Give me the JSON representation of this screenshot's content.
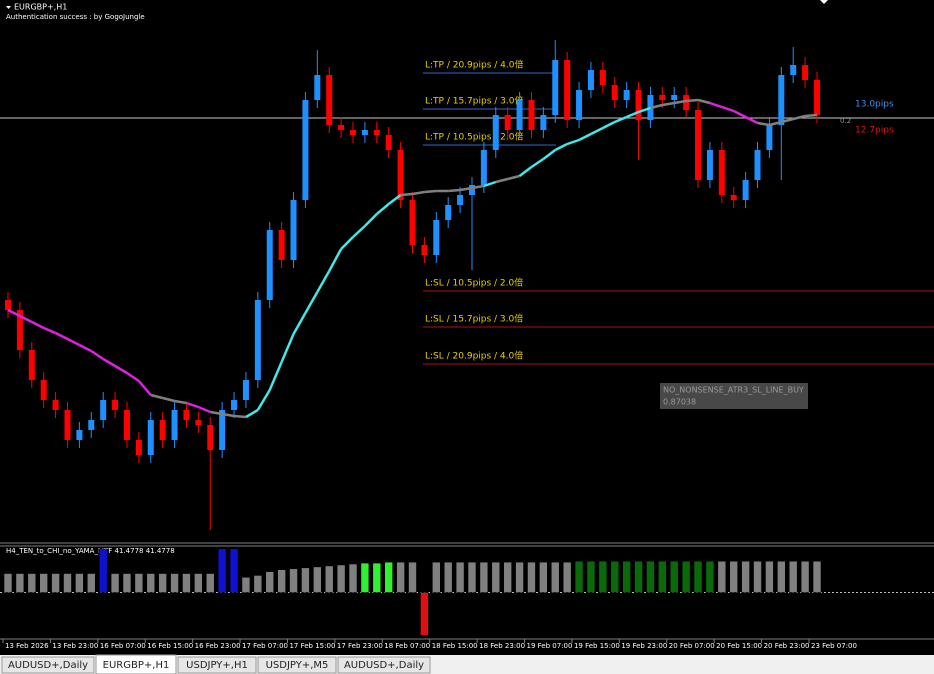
{
  "header": {
    "symbol": "EURGBP+,H1",
    "status": "Authentication success : by GogoJungle"
  },
  "price_pane": {
    "ylim": [
      0,
      540
    ],
    "up_color": "#1e90ff",
    "down_color": "#ff0000",
    "candles": {
      "open": [
        240,
        230,
        190,
        160,
        140,
        130,
        100,
        110,
        120,
        140,
        130,
        100,
        85,
        120,
        100,
        130,
        120,
        115,
        90,
        130,
        140,
        160,
        240,
        310,
        280,
        340,
        440,
        465,
        415,
        410,
        405,
        410,
        405,
        390,
        340,
        295,
        285,
        320,
        335,
        345,
        355,
        390,
        425,
        410,
        440,
        410,
        425,
        480,
        420,
        450,
        470,
        455,
        440,
        450,
        420,
        445,
        440,
        445,
        430,
        360,
        390,
        345,
        340,
        360,
        390,
        415,
        465,
        475,
        460
      ],
      "high": [
        248,
        238,
        198,
        168,
        148,
        138,
        118,
        128,
        148,
        148,
        138,
        108,
        128,
        128,
        138,
        138,
        128,
        123,
        138,
        148,
        168,
        248,
        318,
        318,
        348,
        448,
        490,
        473,
        423,
        418,
        418,
        418,
        413,
        398,
        348,
        303,
        328,
        343,
        353,
        363,
        398,
        433,
        433,
        448,
        448,
        433,
        500,
        488,
        458,
        478,
        478,
        463,
        458,
        458,
        453,
        453,
        453,
        453,
        438,
        398,
        398,
        353,
        368,
        398,
        423,
        473,
        493,
        483,
        468
      ],
      "low": [
        222,
        182,
        152,
        132,
        122,
        92,
        92,
        102,
        112,
        122,
        92,
        77,
        77,
        92,
        92,
        112,
        107,
        10,
        82,
        122,
        132,
        152,
        232,
        272,
        272,
        332,
        432,
        407,
        402,
        397,
        397,
        397,
        382,
        332,
        287,
        277,
        277,
        312,
        327,
        270,
        347,
        382,
        402,
        402,
        402,
        402,
        417,
        412,
        412,
        442,
        447,
        432,
        432,
        380,
        412,
        432,
        432,
        422,
        352,
        352,
        337,
        332,
        332,
        352,
        382,
        360,
        457,
        452,
        417
      ],
      "close": [
        230,
        190,
        160,
        140,
        130,
        100,
        110,
        120,
        140,
        130,
        100,
        85,
        120,
        100,
        130,
        120,
        115,
        90,
        130,
        140,
        160,
        240,
        310,
        280,
        340,
        440,
        465,
        415,
        410,
        405,
        410,
        405,
        390,
        340,
        295,
        285,
        320,
        335,
        345,
        355,
        390,
        425,
        410,
        440,
        410,
        425,
        480,
        420,
        450,
        470,
        455,
        440,
        450,
        420,
        445,
        440,
        445,
        430,
        360,
        390,
        345,
        340,
        360,
        390,
        415,
        465,
        475,
        460,
        425
      ]
    },
    "moving_average": {
      "up_color": "#40e8e8",
      "down_color": "#e020e0",
      "flat_color": "#808080",
      "values": [
        230,
        224,
        218,
        212,
        207,
        201,
        195,
        189,
        181,
        174,
        167,
        159,
        145,
        142,
        139,
        137,
        133,
        128,
        126,
        124,
        123,
        130,
        150,
        178,
        206,
        227,
        248,
        269,
        291,
        303,
        314,
        326,
        336,
        345,
        346,
        348,
        349,
        349,
        350,
        352,
        354,
        358,
        361,
        364,
        373,
        381,
        390,
        396,
        400,
        406,
        412,
        418,
        423,
        428,
        432,
        435,
        437,
        439,
        440,
        437,
        433,
        429,
        423,
        417,
        415,
        418,
        421,
        424,
        425
      ]
    },
    "current_price": {
      "value": 422,
      "color": "#c8c8c8"
    },
    "levels": [
      {
        "label": "L:TP / 20.9pips / 4.0倍",
        "value": 467,
        "color": "#3366cc",
        "kind": "tp"
      },
      {
        "label": "L:TP / 15.7pips / 3.0倍",
        "value": 431,
        "color": "#3366cc",
        "kind": "tp"
      },
      {
        "label": "L:TP / 10.5pips / 2.0倍",
        "value": 395,
        "color": "#3366cc",
        "kind": "tp"
      },
      {
        "label": "L:SL / 10.5pips / 2.0倍",
        "value": 249,
        "color": "#b01010",
        "kind": "sl"
      },
      {
        "label": "L:SL / 15.7pips / 3.0倍",
        "value": 213,
        "color": "#b01010",
        "kind": "sl"
      },
      {
        "label": "L:SL / 20.9pips / 4.0倍",
        "value": 176,
        "color": "#b01010",
        "kind": "sl"
      }
    ],
    "right_labels": [
      {
        "text": "13.0pips",
        "color": "#3a8ee6"
      },
      {
        "text": "0.2",
        "color": "#909090"
      },
      {
        "text": "12.7pips",
        "color": "#e01010"
      }
    ],
    "tooltip": {
      "title": "NO_NONSENSE_ATR3_SL_LINE_BUY",
      "value": "0.87038"
    }
  },
  "indicator_pane": {
    "label": "H4_TEN_to_CHI_no_YAMA_MTF 41.4778 41.4778",
    "ylim": [
      -50,
      50
    ],
    "values": [
      20,
      20,
      20,
      20,
      20,
      20,
      20,
      20,
      46,
      20,
      20,
      20,
      20,
      20,
      20,
      20,
      20,
      20,
      46,
      46,
      16,
      18,
      22,
      24,
      25,
      26,
      27,
      28,
      29,
      30,
      31,
      31,
      32,
      32,
      32,
      -45,
      32,
      32,
      32,
      32,
      32,
      32,
      32,
      32,
      32,
      32,
      32,
      32,
      33,
      33,
      33,
      33,
      33,
      33,
      33,
      33,
      33,
      33,
      33,
      33,
      33,
      33,
      33,
      33,
      33,
      33,
      33,
      33,
      33
    ],
    "colors": [
      "#808080",
      "#808080",
      "#808080",
      "#808080",
      "#808080",
      "#808080",
      "#808080",
      "#808080",
      "#1010d0",
      "#808080",
      "#808080",
      "#808080",
      "#808080",
      "#808080",
      "#808080",
      "#808080",
      "#808080",
      "#808080",
      "#1010d0",
      "#1010d0",
      "#808080",
      "#808080",
      "#808080",
      "#808080",
      "#808080",
      "#808080",
      "#808080",
      "#808080",
      "#808080",
      "#808080",
      "#30f030",
      "#30f030",
      "#30f030",
      "#808080",
      "#808080",
      "#e01010",
      "#808080",
      "#808080",
      "#808080",
      "#808080",
      "#808080",
      "#808080",
      "#808080",
      "#808080",
      "#808080",
      "#808080",
      "#808080",
      "#808080",
      "#0a6a0a",
      "#0a6a0a",
      "#0a6a0a",
      "#0a6a0a",
      "#0a6a0a",
      "#0a6a0a",
      "#0a6a0a",
      "#0a6a0a",
      "#0a6a0a",
      "#0a6a0a",
      "#0a6a0a",
      "#0a6a0a",
      "#808080",
      "#808080",
      "#808080",
      "#808080",
      "#808080",
      "#808080",
      "#808080",
      "#808080",
      "#808080"
    ]
  },
  "time_axis": {
    "labels": [
      "13 Feb 2026",
      "13 Feb 23:00",
      "16 Feb 07:00",
      "16 Feb 15:00",
      "16 Feb 23:00",
      "17 Feb 07:00",
      "17 Feb 15:00",
      "17 Feb 23:00",
      "18 Feb 07:00",
      "18 Feb 15:00",
      "18 Feb 23:00",
      "19 Feb 07:00",
      "19 Feb 15:00",
      "19 Feb 23:00",
      "20 Feb 07:00",
      "20 Feb 15:00",
      "20 Feb 23:00",
      "23 Feb 07:00"
    ]
  },
  "tabs": [
    {
      "label": "AUDUSD+,Daily",
      "active": false
    },
    {
      "label": "EURGBP+,H1",
      "active": true
    },
    {
      "label": "USDJPY+,H1",
      "active": false
    },
    {
      "label": "USDJPY+,M5",
      "active": false
    },
    {
      "label": "AUDUSD+,Daily",
      "active": false
    }
  ]
}
